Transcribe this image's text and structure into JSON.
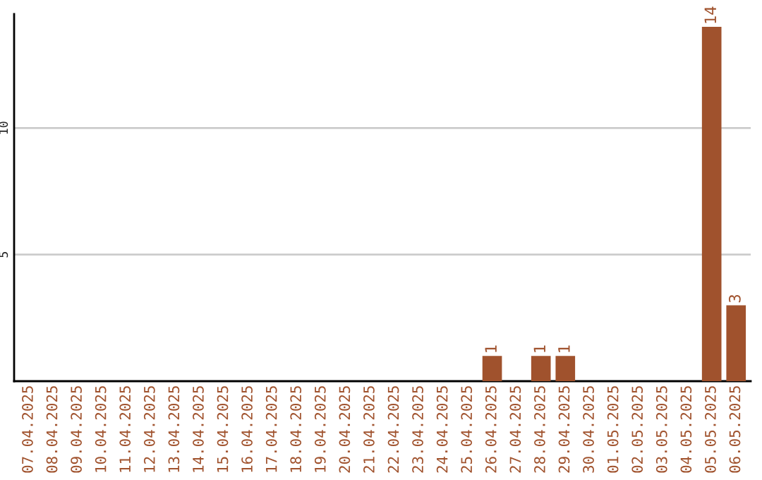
{
  "chart_data": {
    "type": "bar",
    "categories": [
      "07.04.2025",
      "08.04.2025",
      "09.04.2025",
      "10.04.2025",
      "11.04.2025",
      "12.04.2025",
      "13.04.2025",
      "14.04.2025",
      "15.04.2025",
      "16.04.2025",
      "17.04.2025",
      "18.04.2025",
      "19.04.2025",
      "20.04.2025",
      "21.04.2025",
      "22.04.2025",
      "23.04.2025",
      "24.04.2025",
      "25.04.2025",
      "26.04.2025",
      "27.04.2025",
      "28.04.2025",
      "29.04.2025",
      "30.04.2025",
      "01.05.2025",
      "02.05.2025",
      "03.05.2025",
      "04.05.2025",
      "05.05.2025",
      "06.05.2025"
    ],
    "values": [
      0,
      0,
      0,
      0,
      0,
      0,
      0,
      0,
      0,
      0,
      0,
      0,
      0,
      0,
      0,
      0,
      0,
      0,
      0,
      1,
      0,
      1,
      1,
      0,
      0,
      0,
      0,
      0,
      14,
      3
    ],
    "value_labels": [
      null,
      null,
      null,
      null,
      null,
      null,
      null,
      null,
      null,
      null,
      null,
      null,
      null,
      null,
      null,
      null,
      null,
      null,
      null,
      "1",
      null,
      "1",
      "1",
      null,
      null,
      null,
      null,
      null,
      "14",
      "3"
    ],
    "color": "#a0522d",
    "ylim": [
      0,
      14.5
    ],
    "yticks": [
      5,
      10
    ],
    "grid": "y"
  }
}
